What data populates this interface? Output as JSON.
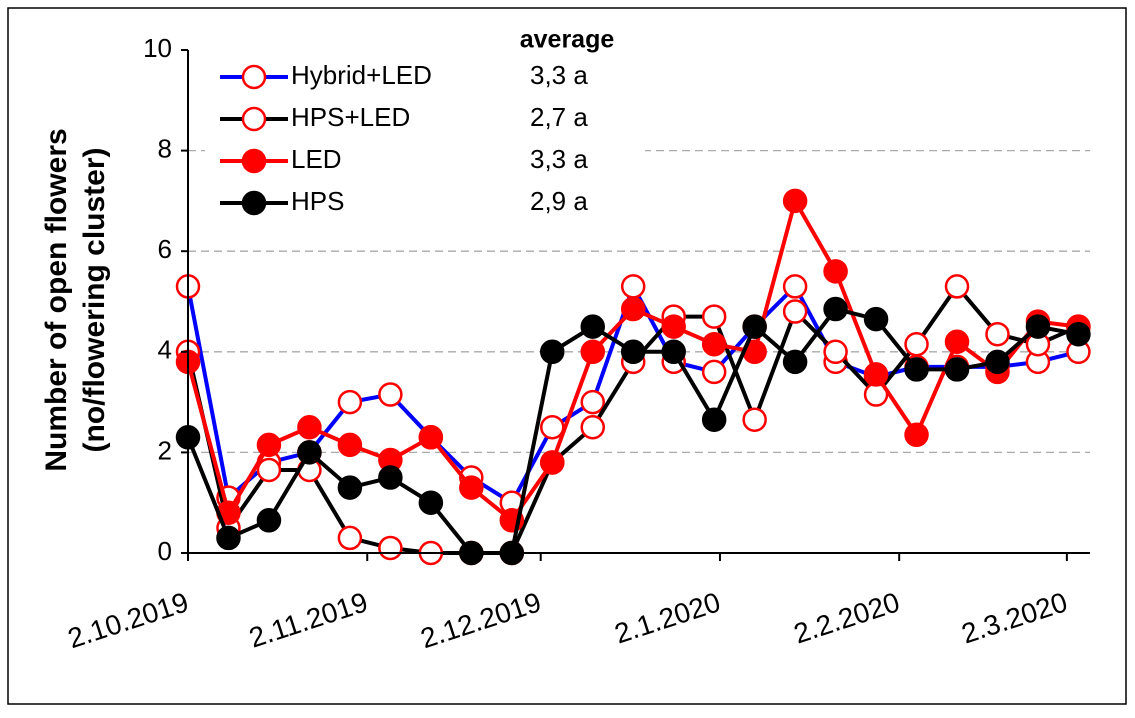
{
  "chart_data": {
    "type": "line",
    "y_label": [
      "Number of open flowers",
      "(no/flowering cluster)"
    ],
    "legend_title": "average",
    "x": [
      "2.10.2019",
      "9.10.2019",
      "16.10.2019",
      "23.10.2019",
      "30.10.2019",
      "6.11.2019",
      "13.11.2019",
      "20.11.2019",
      "27.11.2019",
      "4.12.2019",
      "11.12.2019",
      "18.12.2019",
      "25.12.2019",
      "1.1.2020",
      "8.1.2020",
      "15.1.2020",
      "22.1.2020",
      "29.1.2020",
      "5.2.2020",
      "12.2.2020",
      "19.2.2020",
      "26.2.2020",
      "4.3.2020"
    ],
    "series": [
      {
        "name": "Hybrid+LED",
        "average": "3,3 a",
        "color": "#0000ff",
        "marker_color": "#ff0000",
        "filled": false,
        "values": [
          5.3,
          1.1,
          1.8,
          2.0,
          3.0,
          3.15,
          2.3,
          1.5,
          1.0,
          2.5,
          3.0,
          5.3,
          3.8,
          3.6,
          4.5,
          5.3,
          3.8,
          3.5,
          3.7,
          3.7,
          3.7,
          3.8,
          4.0
        ]
      },
      {
        "name": "HPS+LED",
        "average": "2,7 a",
        "color": "#000000",
        "marker_color": "#ff0000",
        "filled": false,
        "values": [
          4.0,
          0.5,
          1.65,
          1.65,
          0.3,
          0.1,
          0.0,
          0.0,
          0.0,
          1.8,
          2.5,
          3.8,
          4.7,
          4.7,
          2.65,
          4.8,
          4.0,
          3.15,
          4.15,
          5.3,
          4.35,
          4.15,
          4.5
        ]
      },
      {
        "name": "LED",
        "average": "3,3 a",
        "color": "#ff0000",
        "marker_color": "#ff0000",
        "filled": true,
        "values": [
          3.8,
          0.8,
          2.15,
          2.5,
          2.15,
          1.85,
          2.3,
          1.3,
          0.65,
          1.8,
          4.0,
          4.85,
          4.5,
          4.15,
          4.0,
          7.0,
          5.6,
          3.55,
          2.35,
          4.2,
          3.6,
          4.6,
          4.5
        ]
      },
      {
        "name": "HPS",
        "average": "2,9 a",
        "color": "#000000",
        "marker_color": "#000000",
        "filled": true,
        "values": [
          2.3,
          0.3,
          0.65,
          2.0,
          1.3,
          1.5,
          1.0,
          0.0,
          0.0,
          4.0,
          4.5,
          4.0,
          4.0,
          2.65,
          4.5,
          3.8,
          4.85,
          4.65,
          3.65,
          3.65,
          3.8,
          4.5,
          4.35
        ]
      }
    ],
    "xlim": [
      "2.10.2019",
      "6.3.2020"
    ],
    "xticks": [
      "2.10.2019",
      "2.11.2019",
      "2.12.2019",
      "2.1.2020",
      "2.2.2020",
      "2.3.2020"
    ],
    "ylim": [
      0,
      10
    ],
    "yticks": [
      0,
      2,
      4,
      6,
      8,
      10
    ],
    "grid": true
  }
}
